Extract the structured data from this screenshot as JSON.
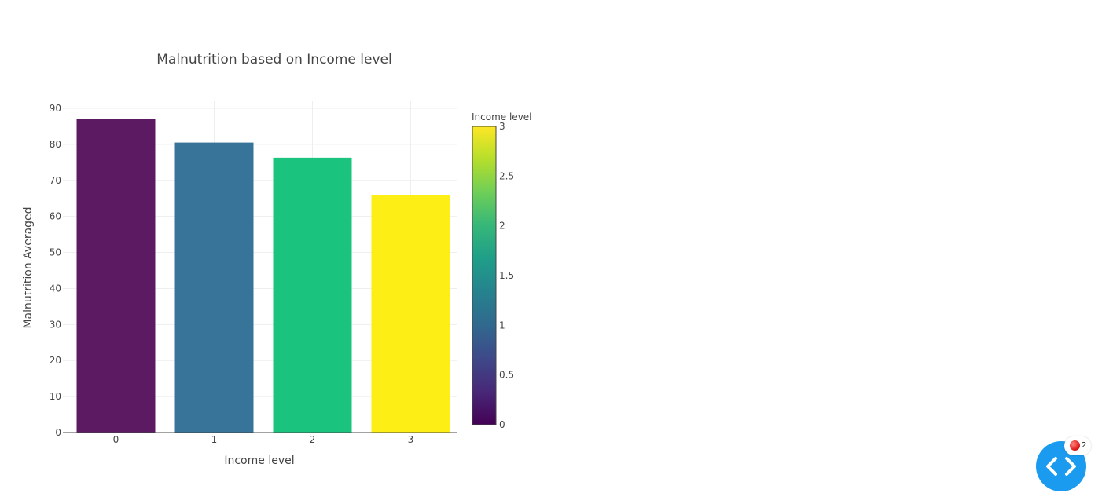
{
  "chart_data": {
    "type": "bar",
    "title": "Malnutrition based on Income level",
    "xlabel": "Income level",
    "ylabel": "Malnutrition Averaged",
    "categories": [
      "0",
      "1",
      "2",
      "3"
    ],
    "values": [
      87,
      80.5,
      76.3,
      65.9
    ],
    "ylim": [
      0,
      90
    ],
    "yticks": [
      0,
      10,
      20,
      30,
      40,
      50,
      60,
      70,
      80,
      90
    ],
    "grid": true,
    "colorbar": {
      "title": "Income level",
      "range": [
        0,
        3
      ],
      "ticks": [
        "0",
        "0.5",
        "1",
        "1.5",
        "2",
        "2.5",
        "3"
      ],
      "colorscale": "viridis"
    },
    "bar_colors": [
      "#5c1a63",
      "#38739a",
      "#1bc47e",
      "#fdee16"
    ]
  },
  "dev_tools": {
    "error_count": "2"
  }
}
